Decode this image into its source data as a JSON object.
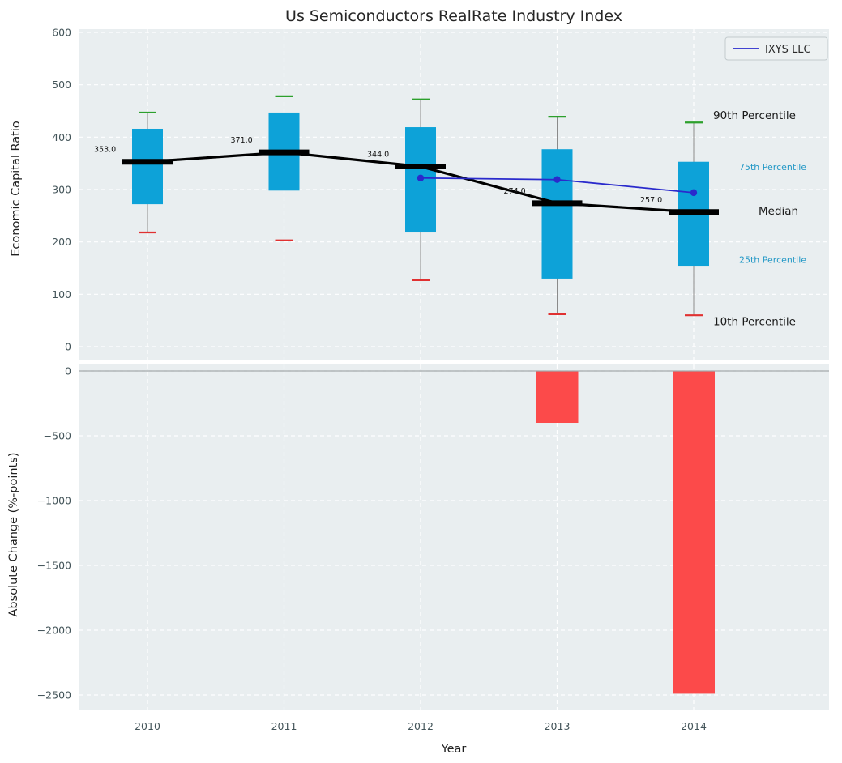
{
  "chart_data": {
    "type": "box",
    "title": "Us Semiconductors RealRate Industry Index",
    "xlabel": "Year",
    "categories": [
      "2010",
      "2011",
      "2012",
      "2013",
      "2014"
    ],
    "legend": {
      "position": "top-right",
      "entries": [
        {
          "label": "IXYS LLC",
          "color": "#2a2acc"
        }
      ]
    },
    "top_panel": {
      "ylabel": "Economic Capital Ratio",
      "ylim": [
        0,
        600
      ],
      "grid": true,
      "yticks": [
        {
          "value": 600,
          "label": "600"
        },
        {
          "value": 500,
          "label": "500"
        },
        {
          "value": 400,
          "label": "400"
        },
        {
          "value": 300,
          "label": "300"
        },
        {
          "value": 200,
          "label": "200"
        },
        {
          "value": 100,
          "label": "100"
        },
        {
          "value": 0,
          "label": "0"
        }
      ],
      "boxes": [
        {
          "year": "2010",
          "p10": 218,
          "p25": 272,
          "median": 353,
          "p75": 416,
          "p90": 447
        },
        {
          "year": "2011",
          "p10": 203,
          "p25": 298,
          "median": 371,
          "p75": 447,
          "p90": 478
        },
        {
          "year": "2012",
          "p10": 127,
          "p25": 218,
          "median": 344,
          "p75": 419,
          "p90": 472
        },
        {
          "year": "2013",
          "p10": 62,
          "p25": 130,
          "median": 274,
          "p75": 377,
          "p90": 439
        },
        {
          "year": "2014",
          "p10": 60,
          "p25": 153,
          "median": 257,
          "p75": 353,
          "p90": 428
        }
      ],
      "median_labels": [
        "353.0",
        "371.0",
        "344.0",
        "274.0",
        "257.0"
      ],
      "ixys_series": {
        "name": "IXYS LLC",
        "color": "#2a2acc",
        "points": [
          {
            "x": "2012",
            "y": 322
          },
          {
            "x": "2013",
            "y": 319
          },
          {
            "x": "2014",
            "y": 294
          }
        ]
      },
      "annotations": [
        {
          "key": "90th",
          "label": "90th Percentile",
          "value": 441,
          "color": "#1a1a1a",
          "size": 13.5
        },
        {
          "key": "75th",
          "label": "75th Percentile",
          "value": 343,
          "color": "#2398c6",
          "size": 11
        },
        {
          "key": "median",
          "label": "Median",
          "value": 258,
          "color": "#1a1a1a",
          "size": 13.5
        },
        {
          "key": "25th",
          "label": "25th Percentile",
          "value": 166,
          "color": "#2398c6",
          "size": 11
        },
        {
          "key": "10th",
          "label": "10th Percentile",
          "value": 47,
          "color": "#1a1a1a",
          "size": 13.5
        }
      ]
    },
    "bottom_panel": {
      "ylabel": "Absolute Change (%-points)",
      "ylim": [
        -2500,
        0
      ],
      "yticks": [
        {
          "value": 0,
          "label": "0"
        },
        {
          "value": -500,
          "label": "−500"
        },
        {
          "value": -1000,
          "label": "−1000"
        },
        {
          "value": -1500,
          "label": "−1500"
        },
        {
          "value": -2000,
          "label": "−2000"
        },
        {
          "value": -2500,
          "label": "−2500"
        }
      ],
      "values": [
        0,
        0,
        0,
        -400,
        -2490
      ]
    },
    "colors": {
      "box_fill": "#0da2d8",
      "bar_negative": "#fc4a4a",
      "median_line": "#000000",
      "cap_top": "#2ca02c",
      "cap_bottom": "#e03131",
      "whisker": "#8a8a8a",
      "zero_line": "#a3a8aa",
      "plot_background": "#e9eef0",
      "grid": "#ffffff"
    }
  }
}
